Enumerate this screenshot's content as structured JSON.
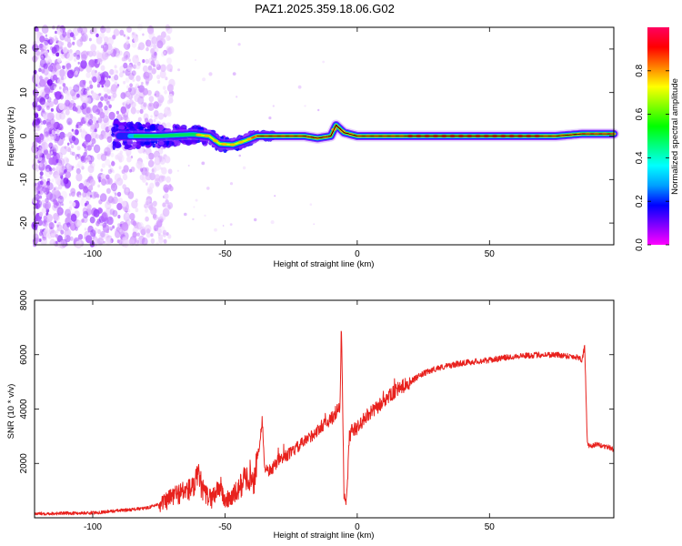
{
  "title": "PAZ1.2025.359.18.06.G02",
  "chart_data": [
    {
      "type": "heatmap",
      "name": "spectrogram",
      "xlabel": "Height of straight line (km)",
      "ylabel": "Frequency (Hz)",
      "xlim": [
        -122,
        97
      ],
      "ylim": [
        -25,
        25
      ],
      "xticks": [
        -100,
        -50,
        0,
        50
      ],
      "yticks": [
        -20,
        -10,
        0,
        10,
        20
      ],
      "colorbar": {
        "label": "Normalized spectral amplitude",
        "range": [
          0,
          1
        ],
        "ticks": [
          0.0,
          0.2,
          0.4,
          0.6,
          0.8
        ],
        "colors": [
          "#ff00ff",
          "#7f00ff",
          "#0000ff",
          "#00a0ff",
          "#00ffff",
          "#00ff80",
          "#00ff00",
          "#80ff00",
          "#ffff00",
          "#ff8000",
          "#ff0000",
          "#ff0060"
        ]
      },
      "ridge": {
        "x": [
          -90,
          -75,
          -62,
          -56,
          -52,
          -47,
          -42,
          -38,
          -30,
          -20,
          -15,
          -10,
          -8,
          -5,
          0,
          10,
          20,
          40,
          60,
          75,
          85,
          97
        ],
        "y": [
          0,
          0,
          0.4,
          0,
          -1.8,
          -2,
          -1,
          0,
          0,
          0,
          -0.5,
          0,
          2.5,
          0.8,
          0,
          0,
          0,
          0,
          0,
          0,
          0.5,
          0.5
        ]
      },
      "noise": {
        "x_range": [
          -122,
          -70
        ],
        "y_range": [
          -25,
          25
        ]
      }
    },
    {
      "type": "line",
      "name": "snr",
      "xlabel": "Height of straight line (km)",
      "ylabel": "SNR (10 * v/v)",
      "xlim": [
        -122,
        97
      ],
      "ylim": [
        0,
        8000
      ],
      "xticks": [
        -100,
        -50,
        0,
        50
      ],
      "yticks": [
        2000,
        4000,
        6000,
        8000
      ],
      "color": "#e8211d",
      "series": [
        {
          "name": "SNR",
          "x": [
            -122,
            -100,
            -80,
            -72,
            -70,
            -62,
            -60,
            -58,
            -55,
            -52,
            -50,
            -47,
            -45,
            -43,
            -40,
            -39,
            -38,
            -37,
            -36,
            -35,
            -34,
            -32,
            -30,
            -25,
            -20,
            -15,
            -12,
            -10,
            -8,
            -6.5,
            -6,
            -5,
            -4,
            -3,
            -2,
            0,
            3,
            7,
            10,
            15,
            20,
            25,
            30,
            35,
            40,
            50,
            60,
            70,
            75,
            80,
            84,
            85,
            86,
            87,
            88,
            90,
            95,
            97
          ],
          "y": [
            150,
            180,
            350,
            600,
            800,
            1100,
            1500,
            900,
            700,
            1200,
            600,
            800,
            1000,
            1400,
            1600,
            1300,
            2200,
            2600,
            3600,
            1900,
            1700,
            1800,
            2100,
            2400,
            2800,
            3200,
            3500,
            3600,
            3900,
            4000,
            7200,
            800,
            600,
            3000,
            3200,
            3300,
            3700,
            4000,
            4300,
            4700,
            5000,
            5300,
            5500,
            5600,
            5700,
            5800,
            5950,
            6000,
            6000,
            5950,
            5900,
            5800,
            6300,
            2700,
            2600,
            2700,
            2600,
            2500
          ]
        }
      ]
    }
  ]
}
